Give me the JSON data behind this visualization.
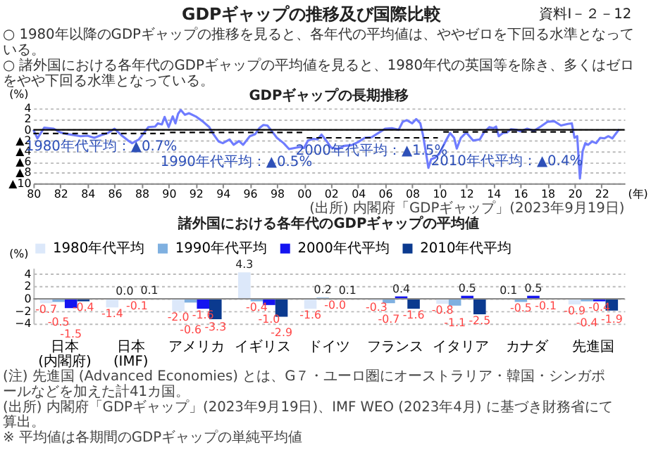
{
  "chart_data": [
    {
      "type": "line",
      "title": "GDPギャップの長期推移",
      "ylabel": "(%)",
      "xlabel": "(年)",
      "annotations": [
        "GDPギャップの推移及び国際比較",
        "資料Ⅰ－２－12",
        "○ 1980年以降のGDPギャップの推移を見ると、各年代の平均値は、ややゼロを下回る水準となっている。",
        "○ 諸外国における各年代のGDPギャップの平均値を見ると、1980年代の英国等を除き、多くはゼロをやや下回る水準となっている。",
        {
          "text": "1980年代平均：▲0.7%",
          "x": 1985,
          "y": -0.7
        },
        {
          "text": "1990年代平均：▲0.5%",
          "x": 1995,
          "y": -0.5
        },
        {
          "text": "2000年代平均：▲1.5%",
          "x": 2005,
          "y": -1.5
        },
        {
          "text": "2010年代平均：▲0.4%",
          "x": 2015,
          "y": -0.4
        },
        "(出所) 内閣府「GDPギャップ」(2023年9月19日)"
      ],
      "xlim": [
        1980,
        2023.7
      ],
      "xticks": [
        {
          "value": 1980,
          "label": "80"
        },
        {
          "value": 1982,
          "label": "82"
        },
        {
          "value": 1984,
          "label": "84"
        },
        {
          "value": 1986,
          "label": "86"
        },
        {
          "value": 1988,
          "label": "88"
        },
        {
          "value": 1990,
          "label": "90"
        },
        {
          "value": 1992,
          "label": "92"
        },
        {
          "value": 1994,
          "label": "94"
        },
        {
          "value": 1996,
          "label": "96"
        },
        {
          "value": 1998,
          "label": "98"
        },
        {
          "value": 2000,
          "label": "00"
        },
        {
          "value": 2002,
          "label": "02"
        },
        {
          "value": 2004,
          "label": "04"
        },
        {
          "value": 2006,
          "label": "06"
        },
        {
          "value": 2008,
          "label": "08"
        },
        {
          "value": 2010,
          "label": "10"
        },
        {
          "value": 2012,
          "label": "12"
        },
        {
          "value": 2014,
          "label": "14"
        },
        {
          "value": 2016,
          "label": "16"
        },
        {
          "value": 2018,
          "label": "18"
        },
        {
          "value": 2020,
          "label": "20"
        },
        {
          "value": 2022,
          "label": "22"
        }
      ],
      "ylim": [
        -10,
        4
      ],
      "yticks": [
        4,
        2,
        0,
        {
          "value": -2,
          "label": "▲2"
        },
        {
          "value": -4,
          "label": "▲4"
        },
        {
          "value": -6,
          "label": "▲6"
        },
        {
          "value": -8,
          "label": "▲8"
        },
        {
          "value": -10,
          "label": "▲10"
        }
      ],
      "grid": "y",
      "marker": "none",
      "ref_lines": [
        {
          "axis": "y",
          "value": 0,
          "color": "#000000"
        }
      ],
      "series": [
        {
          "color": "#6f7cff",
          "line_style": "solid",
          "x": [
            1980.0,
            1980.3,
            1980.8,
            1981.5,
            1982.0,
            1982.5,
            1983.0,
            1983.5,
            1984.0,
            1984.5,
            1985.0,
            1985.5,
            1986.0,
            1986.5,
            1987.0,
            1987.3,
            1987.8,
            1988.2,
            1988.5,
            1989.0,
            1989.2,
            1989.5,
            1989.7,
            1990.0,
            1990.3,
            1990.5,
            1990.7,
            1990.9,
            1991.2,
            1991.5,
            1992.0,
            1992.5,
            1993.0,
            1993.3,
            1993.7,
            1994.0,
            1994.5,
            1994.8,
            1995.2,
            1995.5,
            1996.0,
            1996.4,
            1996.7,
            1997.0,
            1997.3,
            1997.7,
            1998.0,
            1998.5,
            1998.9,
            1999.3,
            1999.7,
            2000.0,
            2000.3,
            2000.7,
            2001.0,
            2001.3,
            2001.7,
            2002.0,
            2002.5,
            2003.0,
            2003.5,
            2004.0,
            2004.5,
            2005.0,
            2005.5,
            2006.0,
            2006.5,
            2007.0,
            2007.3,
            2007.6,
            2008.0,
            2008.3,
            2008.6,
            2008.8,
            2009.0,
            2009.2,
            2009.4,
            2009.7,
            2010.0,
            2010.5,
            2010.8,
            2011.1,
            2011.3,
            2011.6,
            2012.0,
            2012.5,
            2013.0,
            2013.3,
            2013.7,
            2014.0,
            2014.2,
            2014.4,
            2014.7,
            2015.0,
            2015.3,
            2015.7,
            2016.0,
            2016.5,
            2017.0,
            2017.5,
            2018.0,
            2018.5,
            2019.0,
            2019.5,
            2019.8,
            2020.0,
            2020.2,
            2020.4,
            2020.6,
            2020.8,
            2021.0,
            2021.3,
            2021.6,
            2021.9,
            2022.2,
            2022.5,
            2022.8,
            2023.0,
            2023.3
          ],
          "values": [
            0.0,
            -1.6,
            0.4,
            0.2,
            -0.5,
            -0.8,
            -1.0,
            -1.2,
            -1.1,
            -1.5,
            -1.0,
            -0.6,
            0.2,
            -1.0,
            -2.0,
            -2.5,
            -1.8,
            -0.5,
            0.5,
            0.6,
            1.2,
            1.0,
            2.4,
            0.5,
            2.5,
            1.2,
            3.0,
            3.7,
            2.8,
            3.1,
            2.5,
            1.6,
            0.5,
            -0.8,
            -2.2,
            -2.5,
            -1.8,
            -2.8,
            -2.1,
            -2.8,
            -1.2,
            -0.8,
            0.3,
            0.9,
            0.8,
            -0.5,
            -1.5,
            -2.5,
            -3.6,
            -3.4,
            -3.2,
            -3.4,
            -2.0,
            -1.7,
            -1.8,
            -0.9,
            -2.2,
            -3.3,
            -3.6,
            -3.0,
            -2.9,
            -2.3,
            -1.5,
            -1.4,
            -0.6,
            0.2,
            0.3,
            0.0,
            1.5,
            1.8,
            1.2,
            2.0,
            1.2,
            -1.0,
            -4.0,
            -7.1,
            -5.5,
            -5.2,
            -4.5,
            -2.0,
            -0.6,
            -1.5,
            -3.5,
            -1.5,
            -0.5,
            -2.0,
            -1.8,
            -0.5,
            0.5,
            0.3,
            0.6,
            -1.2,
            -0.6,
            -0.5,
            0.1,
            0.0,
            -0.3,
            0.2,
            -0.2,
            0.6,
            1.5,
            1.6,
            0.8,
            1.1,
            1.2,
            -1.5,
            -1.2,
            -9.1,
            -4.0,
            -2.5,
            -2.8,
            -2.2,
            -2.5,
            -1.5,
            -1.6,
            -1.2,
            -1.6,
            -0.9,
            0.1
          ]
        },
        {
          "color": "#000000",
          "line_style": "dashed",
          "x": [
            1980,
            1989.7
          ],
          "values": [
            -0.7,
            -0.7
          ]
        },
        {
          "color": "#000000",
          "line_style": "dashed",
          "x": [
            1990.1,
            1999.9
          ],
          "values": [
            -0.5,
            -0.5
          ]
        },
        {
          "color": "#000000",
          "line_style": "dashed",
          "x": [
            2000.2,
            2009.9
          ],
          "values": [
            -1.5,
            -1.5
          ]
        },
        {
          "color": "#000000",
          "line_style": "dashed",
          "x": [
            2010.3,
            2019.9
          ],
          "values": [
            -0.4,
            -0.4
          ]
        }
      ]
    },
    {
      "type": "bar",
      "title": "諸外国における各年代のGDPギャップの平均値",
      "ylabel": "(%)",
      "categories": [
        "日本(内閣府)",
        "日本(IMF)",
        "アメリカ",
        "イギリス",
        "ドイツ",
        "フランス",
        "イタリア",
        "カナダ",
        "先進国"
      ],
      "ylim": [
        -4,
        5
      ],
      "yticks": [
        -4,
        -2,
        0,
        2,
        4
      ],
      "grid": "y",
      "legend": "top left",
      "annotations": [
        "(注) 先進国 (Advanced Economies) とは、G７・ユーロ圏にオーストラリア・韓国・シンガポールなどを加えた計41カ国。",
        "(出所) 内閣府「GDPギャップ」(2023年9月19日)、IMF WEO (2023年4月) に基づき財務省にて算出。",
        "※ 平均値は各期間のGDPギャップの単純平均値"
      ],
      "series": [
        {
          "name": "1980年代平均",
          "color": "#dce8fa",
          "values": [
            -0.7,
            -1.4,
            -2.0,
            4.3,
            -1.6,
            -0.3,
            -0.8,
            0.1,
            -0.9
          ],
          "value_labels": [
            "-0.7",
            "-1.4",
            "-2.0",
            "4.3",
            "-1.6",
            "-0.3",
            "-0.8",
            "0.1",
            "-0.9"
          ]
        },
        {
          "name": "1990年代平均",
          "color": "#7fb0e0",
          "values": [
            -0.5,
            0.0,
            -0.6,
            -0.4,
            0.2,
            -0.7,
            -1.1,
            -0.5,
            -0.4
          ],
          "value_labels": [
            "-0.5",
            "0.0",
            "-0.6",
            "-0.4",
            "0.2",
            "-0.7",
            "-1.1",
            "-0.5",
            "-0.4"
          ]
        },
        {
          "name": "2000年代平均",
          "color": "#1414f0",
          "values": [
            -1.5,
            -0.1,
            -1.6,
            -1.0,
            0.0,
            0.4,
            0.5,
            0.5,
            -0.4
          ],
          "value_labels": [
            "-1.5",
            "-0.1",
            "-1.6",
            "-1.0",
            "-0.0",
            "0.4",
            "0.5",
            "0.5",
            "-0.4"
          ]
        },
        {
          "name": "2010年代平均",
          "color": "#0b3a8f",
          "values": [
            -0.4,
            0.1,
            -3.3,
            -2.9,
            0.1,
            -1.6,
            -2.5,
            -0.1,
            -1.9
          ],
          "value_labels": [
            "-0.4",
            "0.1",
            "-3.3",
            "-2.9",
            "0.1",
            "-1.6",
            "-2.5",
            "-0.1",
            "-1.9"
          ]
        }
      ]
    }
  ]
}
